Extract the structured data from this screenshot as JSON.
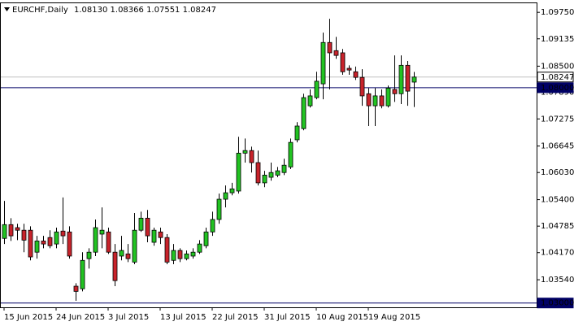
{
  "chart_data": {
    "type": "candlestick",
    "title": "EURCHF,Daily",
    "ohlc_label": "1.08130 1.08366 1.07551 1.08247",
    "categories": [
      "15 Jun 2015",
      null,
      null,
      null,
      null,
      null,
      null,
      null,
      "24 Jun 2015",
      null,
      null,
      null,
      null,
      null,
      null,
      null,
      "3 Jul 2015",
      null,
      null,
      null,
      null,
      null,
      null,
      null,
      "13 Jul 2015",
      null,
      null,
      null,
      null,
      null,
      null,
      null,
      "22 Jul 2015",
      null,
      null,
      null,
      null,
      null,
      null,
      null,
      "31 Jul 2015",
      null,
      null,
      null,
      null,
      null,
      null,
      null,
      "10 Aug 2015",
      null,
      null,
      null,
      null,
      null,
      null,
      null,
      "19 Aug 2015",
      null,
      null,
      null,
      null,
      null,
      null,
      null
    ],
    "open": [
      1.045,
      1.0482,
      1.0475,
      1.0469,
      1.0469,
      1.0418,
      1.0444,
      1.0452,
      1.0437,
      1.0467,
      1.0465,
      1.0339,
      1.0333,
      1.0403,
      1.0418,
      1.046,
      1.0465,
      1.0418,
      1.0409,
      1.0414,
      1.0395,
      1.0469,
      1.0497,
      1.0441,
      1.0465,
      1.0452,
      1.0399,
      1.0422,
      1.0403,
      1.0409,
      1.0418,
      1.0433,
      1.0465,
      1.0494,
      1.0541,
      1.0556,
      1.056,
      1.0648,
      1.0654,
      1.0626,
      1.0579,
      1.0592,
      1.0597,
      1.0603,
      1.0616,
      1.0679,
      1.0705,
      1.0758,
      1.0777,
      1.0809,
      1.0905,
      1.0886,
      1.0881,
      1.0845,
      1.0837,
      1.0824,
      1.0786,
      1.0758,
      1.0781,
      1.0758,
      1.0796,
      1.0786,
      1.0852,
      1.0813
    ],
    "high": [
      1.0537,
      1.0497,
      1.0484,
      1.0484,
      1.0478,
      1.0456,
      1.0456,
      1.0469,
      1.0475,
      1.0545,
      1.0478,
      1.0346,
      1.0418,
      1.0427,
      1.0494,
      1.0522,
      1.0475,
      1.0437,
      1.0456,
      1.0437,
      1.0509,
      1.0512,
      1.0516,
      1.0475,
      1.0475,
      1.046,
      1.0437,
      1.0427,
      1.0422,
      1.0427,
      1.0446,
      1.0475,
      1.0512,
      1.0554,
      1.0573,
      1.0579,
      1.0686,
      1.0682,
      1.0663,
      1.0654,
      1.0607,
      1.0626,
      1.0616,
      1.0635,
      1.0682,
      1.072,
      1.0786,
      1.0796,
      1.0837,
      1.0928,
      1.096,
      1.0918,
      1.089,
      1.0852,
      1.0849,
      1.0843,
      1.0799,
      1.0799,
      1.0796,
      1.0805,
      1.0875,
      1.0875,
      1.0862,
      1.08366
    ],
    "low": [
      1.0437,
      1.0444,
      1.0446,
      1.0418,
      1.0399,
      1.0403,
      1.0427,
      1.0427,
      1.0427,
      1.0437,
      1.0403,
      1.0305,
      1.0327,
      1.038,
      1.0409,
      1.0427,
      1.0414,
      1.0339,
      1.0399,
      1.0395,
      1.039,
      1.0465,
      1.0441,
      1.0433,
      1.0437,
      1.039,
      1.039,
      1.0395,
      1.0399,
      1.0403,
      1.0414,
      1.0427,
      1.0456,
      1.0484,
      1.0522,
      1.055,
      1.0554,
      1.0626,
      1.0603,
      1.0573,
      1.0569,
      1.0584,
      1.0592,
      1.0597,
      1.0611,
      1.0673,
      1.0701,
      1.0754,
      1.0773,
      1.0773,
      1.0796,
      1.0867,
      1.083,
      1.083,
      1.0818,
      1.0758,
      1.0711,
      1.0711,
      1.0752,
      1.0754,
      1.0767,
      1.0762,
      1.0758,
      1.07551
    ],
    "close": [
      1.0482,
      1.0456,
      1.0469,
      1.0446,
      1.0407,
      1.0444,
      1.0437,
      1.0433,
      1.0465,
      1.0456,
      1.0409,
      1.0327,
      1.0399,
      1.0418,
      1.0475,
      1.0469,
      1.0418,
      1.0352,
      1.0422,
      1.0403,
      1.0469,
      1.0497,
      1.0456,
      1.0469,
      1.0452,
      1.0395,
      1.0422,
      1.0403,
      1.0414,
      1.0418,
      1.0437,
      1.0465,
      1.0494,
      1.0541,
      1.0556,
      1.0565,
      1.0648,
      1.0654,
      1.0626,
      1.0579,
      1.0597,
      1.0603,
      1.0607,
      1.062,
      1.0673,
      1.0711,
      1.0777,
      1.0781,
      1.0815,
      1.0905,
      1.0881,
      1.0875,
      1.0837,
      1.0841,
      1.0824,
      1.0781,
      1.0758,
      1.0781,
      1.0758,
      1.0799,
      1.0786,
      1.0852,
      1.0792,
      1.08247
    ],
    "up_color": "#22c322",
    "down_color": "#c8232b",
    "ylim": [
      1.029,
      1.0998
    ],
    "yticks": [
      {
        "value": 1.0975,
        "label": "1.09750"
      },
      1.09135,
      {
        "value": 1.085,
        "label": "1.08500"
      },
      {
        "value": 1.0789,
        "label": "1.07890"
      },
      1.07275,
      1.06645,
      {
        "value": 1.0603,
        "label": "1.06030"
      },
      {
        "value": 1.054,
        "label": "1.05400"
      },
      1.04785,
      {
        "value": 1.0417,
        "label": "1.04170"
      },
      {
        "value": 1.0354,
        "label": "1.03540"
      }
    ],
    "hlines": [
      {
        "value": 1.08247,
        "label": "1.08247",
        "color": "#c0c0c0"
      },
      {
        "value": 1.08,
        "label": "1.08000",
        "color": "#000066"
      },
      {
        "value": 1.03,
        "label": "1.03000",
        "color": "#000066"
      }
    ]
  }
}
